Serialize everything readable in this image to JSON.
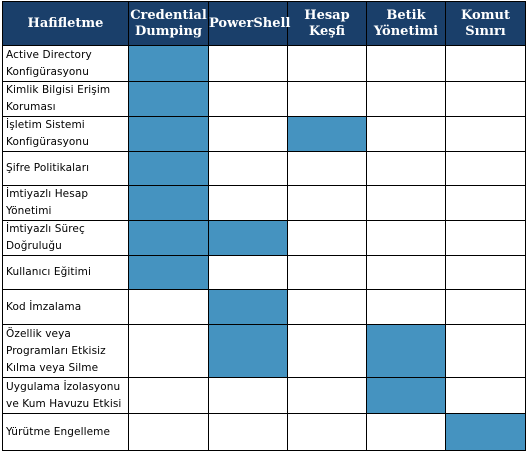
{
  "headers": [
    "Hafifletme",
    "Credential Dumping",
    "PowerShell",
    "Hesap Keşfi",
    "Betik Yönetimi",
    "Komut Sınırı"
  ],
  "rows": [
    {
      "label": "Active Directory Konfigürasyonu",
      "marks": [
        1,
        0,
        0,
        0,
        0
      ]
    },
    {
      "label": "Kimlik Bilgisi Erişim Koruması",
      "marks": [
        1,
        0,
        0,
        0,
        0
      ]
    },
    {
      "label": "İşletim Sistemi Konfigürasyonu",
      "marks": [
        1,
        0,
        1,
        0,
        0
      ]
    },
    {
      "label": "Şifre Politikaları",
      "marks": [
        1,
        0,
        0,
        0,
        0
      ]
    },
    {
      "label": "İmtiyazlı Hesap Yönetimi",
      "marks": [
        1,
        0,
        0,
        0,
        0
      ]
    },
    {
      "label": "İmtiyazlı Süreç Doğruluğu",
      "marks": [
        1,
        1,
        0,
        0,
        0
      ]
    },
    {
      "label": "Kullanıcı Eğitimi",
      "marks": [
        1,
        0,
        0,
        0,
        0
      ]
    },
    {
      "label": "Kod İmzalama",
      "marks": [
        0,
        1,
        0,
        0,
        0
      ]
    },
    {
      "label": "Özellik veya Programları Etkisiz Kılma veya Silme",
      "marks": [
        0,
        1,
        0,
        1,
        0
      ]
    },
    {
      "label": "Uygulama İzolasyonu ve Kum Havuzu Etkisi",
      "marks": [
        0,
        0,
        0,
        1,
        0
      ]
    },
    {
      "label": "Yürütme Engelleme",
      "marks": [
        0,
        0,
        0,
        0,
        1
      ]
    }
  ],
  "colors": {
    "header_bg": "#1a3f6a",
    "header_text": "#ffffff",
    "mark_fill": "#4593c0",
    "grid": "#000000"
  }
}
